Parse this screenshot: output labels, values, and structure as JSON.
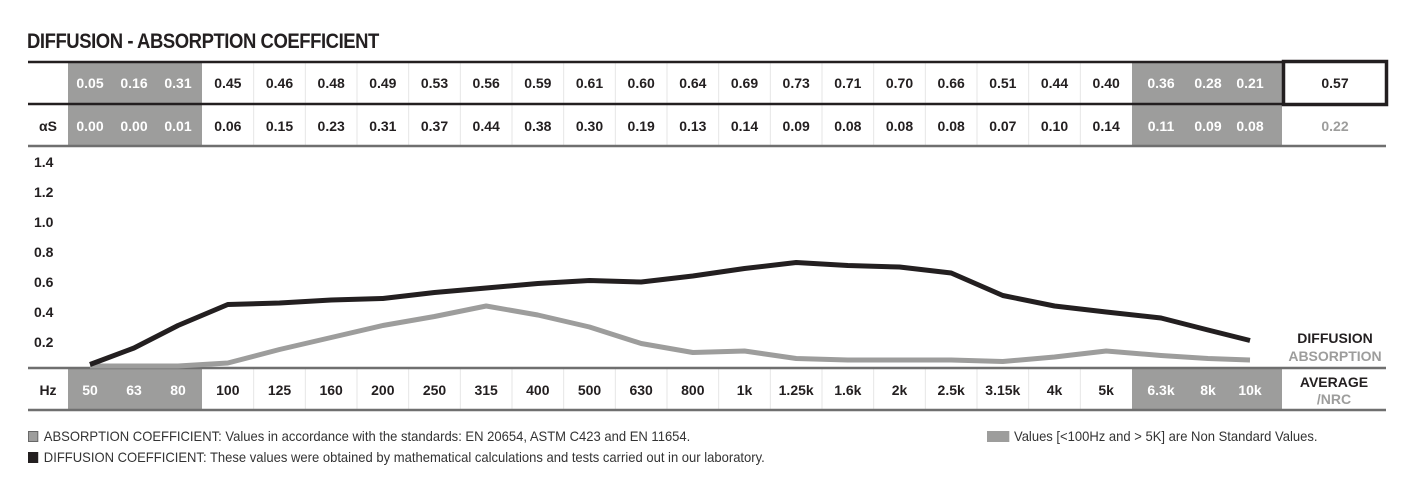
{
  "title": "DIFFUSION - ABSORPTION COEFFICIENT",
  "colors": {
    "diffusion": "#231f20",
    "absorption": "#9d9d9c",
    "non_standard_band": "#9d9d9c",
    "rule": "#6f6f6f"
  },
  "chart_data": {
    "type": "line",
    "title": "DIFFUSION - ABSORPTION COEFFICIENT",
    "xlabel": "Hz",
    "ylabel": "",
    "x_unit_label": "Hz",
    "categories": [
      "50",
      "63",
      "80",
      "100",
      "125",
      "160",
      "200",
      "250",
      "315",
      "400",
      "500",
      "630",
      "800",
      "1k",
      "1.25k",
      "1.6k",
      "2k",
      "2.5k",
      "3.15k",
      "4k",
      "5k",
      "6.3k",
      "8k",
      "10k"
    ],
    "non_standard_categories": [
      "50",
      "63",
      "80",
      "6.3k",
      "8k",
      "10k"
    ],
    "series": [
      {
        "name": "DIFFUSION",
        "row_label": "",
        "values": [
          0.05,
          0.16,
          0.31,
          0.45,
          0.46,
          0.48,
          0.49,
          0.53,
          0.56,
          0.59,
          0.61,
          0.6,
          0.64,
          0.69,
          0.73,
          0.71,
          0.7,
          0.66,
          0.51,
          0.44,
          0.4,
          0.36,
          0.28,
          0.21
        ],
        "value_labels": [
          "0.05",
          "0.16",
          "0.31",
          "0.45",
          "0.46",
          "0.48",
          "0.49",
          "0.53",
          "0.56",
          "0.59",
          "0.61",
          "0.60",
          "0.64",
          "0.69",
          "0.73",
          "0.71",
          "0.70",
          "0.66",
          "0.51",
          "0.44",
          "0.40",
          "0.36",
          "0.28",
          "0.21"
        ],
        "average": "0.57"
      },
      {
        "name": "ABSORPTION",
        "row_label": "αS",
        "values": [
          0.0,
          0.0,
          0.01,
          0.06,
          0.15,
          0.23,
          0.31,
          0.37,
          0.44,
          0.38,
          0.3,
          0.19,
          0.13,
          0.14,
          0.09,
          0.08,
          0.08,
          0.08,
          0.07,
          0.1,
          0.14,
          0.11,
          0.09,
          0.08
        ],
        "value_labels": [
          "0.00",
          "0.00",
          "0.01",
          "0.06",
          "0.15",
          "0.23",
          "0.31",
          "0.37",
          "0.44",
          "0.38",
          "0.30",
          "0.19",
          "0.13",
          "0.14",
          "0.09",
          "0.08",
          "0.08",
          "0.08",
          "0.07",
          "0.10",
          "0.14",
          "0.11",
          "0.09",
          "0.08"
        ],
        "average": "0.22"
      }
    ],
    "yticks": [
      "1.4",
      "1.2",
      "1.0",
      "0.8",
      "0.6",
      "0.4",
      "0.2"
    ],
    "ytick_values": [
      1.4,
      1.2,
      1.0,
      0.8,
      0.6,
      0.4,
      0.2
    ],
    "ylim": [
      0,
      1.45
    ],
    "grid": false,
    "legend": [
      {
        "label": "DIFFUSION",
        "series": "DIFFUSION"
      },
      {
        "label": "ABSORPTION",
        "series": "ABSORPTION"
      }
    ],
    "legend_position": "right",
    "average_header": "AVERAGE",
    "average_subheader": "/NRC"
  },
  "footnotes": {
    "absorption": "ABSORPTION COEFFICIENT: Values in accordance with the standards: EN 20654, ASTM C423 and EN 11654.",
    "diffusion": "DIFFUSION COEFFICIENT: These values were obtained by mathematical calculations and tests carried out in our laboratory.",
    "non_standard": "Values [<100Hz and > 5K] are Non Standard Values."
  }
}
